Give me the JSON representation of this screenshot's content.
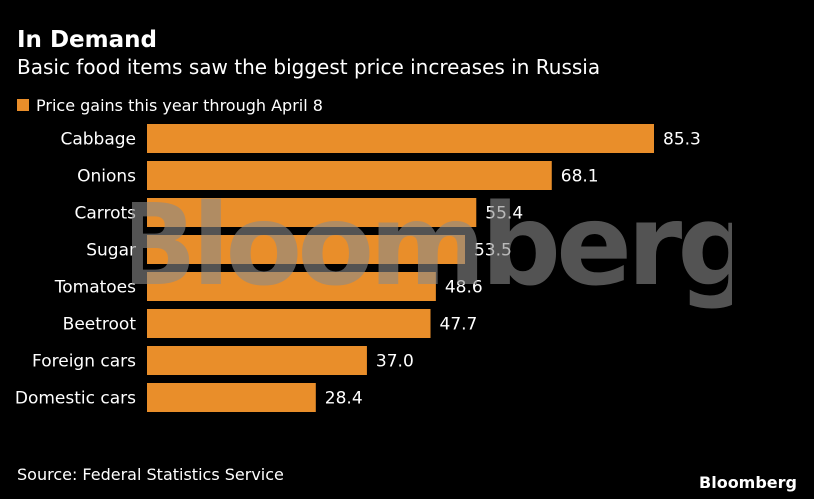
{
  "title": "In Demand",
  "subtitle": "Basic food items saw the biggest price increases in Russia",
  "source": "Source: Federal Statistics Service",
  "brand": "Bloomberg",
  "watermark": "Bloomberg",
  "colors": {
    "background": "#000000",
    "bar": "#e98e2a",
    "text": "#ffffff"
  },
  "chart_data": {
    "type": "bar",
    "orientation": "horizontal",
    "categories": [
      "Cabbage",
      "Onions",
      "Carrots",
      "Sugar",
      "Tomatoes",
      "Beetroot",
      "Foreign cars",
      "Domestic cars"
    ],
    "series": [
      {
        "name": "Price gains this year through April 8",
        "values": [
          85.3,
          68.1,
          55.4,
          53.5,
          48.6,
          47.7,
          37.0,
          28.4
        ],
        "value_labels": [
          "85.3",
          "68.1",
          "55.4",
          "53.5",
          "48.6",
          "47.7",
          "37.0",
          "28.4"
        ]
      }
    ],
    "xlim": [
      0,
      85.3
    ],
    "grid": false,
    "legend": "top-left"
  }
}
